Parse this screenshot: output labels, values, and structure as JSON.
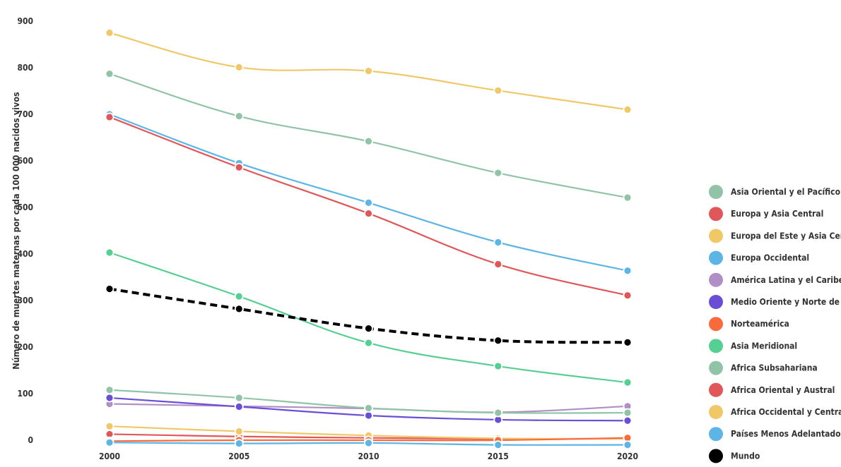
{
  "chart_data": {
    "type": "line",
    "title": "",
    "xlabel": "",
    "ylabel": "Número de muertes maternas por cada 100 000 nacidos vivos",
    "x": [
      2000,
      2005,
      2010,
      2015,
      2020
    ],
    "xlim": [
      2000,
      2020
    ],
    "ylim": [
      0,
      900
    ],
    "yticks": [
      0,
      100,
      200,
      300,
      400,
      500,
      600,
      700,
      800,
      900
    ],
    "grid": false,
    "legend_position": "right",
    "series": [
      {
        "name": "Asia Oriental y el Pacífico",
        "color": "#91c4a7",
        "values": [
          787,
          696,
          642,
          574,
          521
        ]
      },
      {
        "name": "Europa y Asia Central",
        "color": "#e05759",
        "values": [
          13,
          8,
          5,
          3,
          3
        ]
      },
      {
        "name": "Europa del Este y Asia Central",
        "color": "#f0c868",
        "values": [
          30,
          19,
          10,
          4,
          3
        ]
      },
      {
        "name": "Europa Occidental",
        "color": "#5cb5e5",
        "values": [
          700,
          595,
          510,
          425,
          364
        ]
      },
      {
        "name": "América Latina y el Caribe",
        "color": "#b08fc7",
        "values": [
          78,
          73,
          68,
          60,
          73
        ]
      },
      {
        "name": "Medio Oriente y Norte de África",
        "color": "#6a4fd6",
        "values": [
          91,
          72,
          53,
          44,
          42
        ]
      },
      {
        "name": "Norteamérica",
        "color": "#fb6a3a",
        "values": [
          -2,
          0,
          0,
          0,
          5
        ]
      },
      {
        "name": "Asia Meridional",
        "color": "#55cf92",
        "values": [
          403,
          309,
          209,
          159,
          124
        ]
      },
      {
        "name": "Africa Subsahariana",
        "color": "#91c4a7",
        "values": [
          108,
          91,
          69,
          59,
          59
        ]
      },
      {
        "name": "Africa Oriental y Austral",
        "color": "#e05759",
        "values": [
          694,
          586,
          487,
          378,
          311
        ]
      },
      {
        "name": "Africa Occidental y Central",
        "color": "#f0c868",
        "values": [
          875,
          801,
          793,
          751,
          710
        ]
      },
      {
        "name": "Países Menos Adelantados",
        "color": "#5cb5e5",
        "values": [
          -5,
          -7,
          -6,
          -10,
          -10
        ]
      },
      {
        "name": "Mundo",
        "color": "#000000",
        "dashed": true,
        "values": [
          325,
          282,
          240,
          214,
          210
        ]
      }
    ]
  }
}
